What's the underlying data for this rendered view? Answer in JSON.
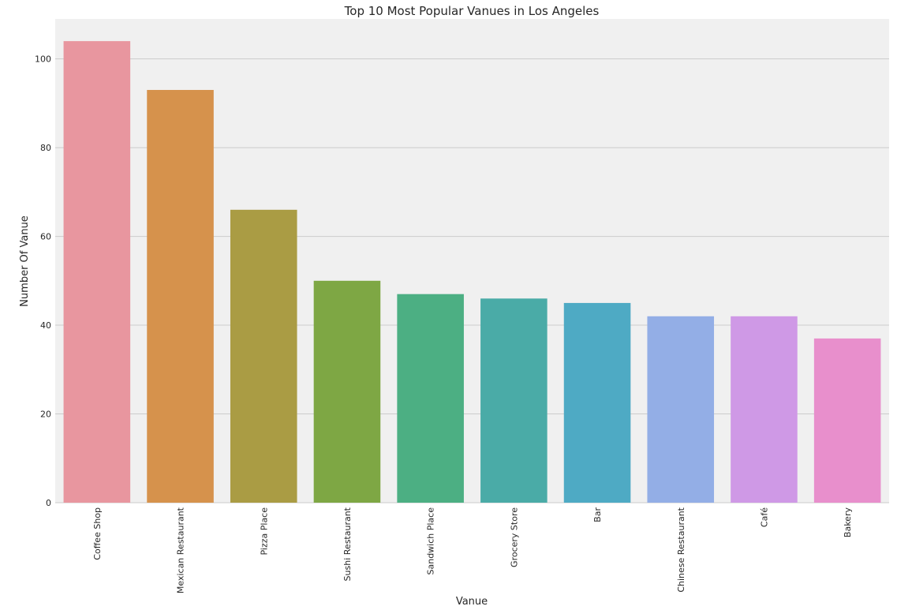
{
  "chart_data": {
    "type": "bar",
    "title": "Top 10 Most Popular Vanues in Los Angeles",
    "xlabel": "Vanue",
    "ylabel": "Number Of Vanue",
    "categories": [
      "Coffee Shop",
      "Mexican Restaurant",
      "Pizza Place",
      "Sushi Restaurant",
      "Sandwich Place",
      "Grocery Store",
      "Bar",
      "Chinese Restaurant",
      "Café",
      "Bakery"
    ],
    "values": [
      104,
      93,
      66,
      50,
      47,
      46,
      45,
      42,
      42,
      37
    ],
    "colors": [
      "#e8969f",
      "#d6924c",
      "#aa9c44",
      "#7ea744",
      "#4caf83",
      "#4aaba7",
      "#4eaac4",
      "#93aee6",
      "#cf99e6",
      "#e88fcc"
    ],
    "ylim": [
      0,
      109
    ],
    "yticks": [
      0,
      20,
      40,
      60,
      80,
      100
    ],
    "grid": true,
    "background": "#f0f0f0",
    "grid_color": "#cbcbcb"
  }
}
